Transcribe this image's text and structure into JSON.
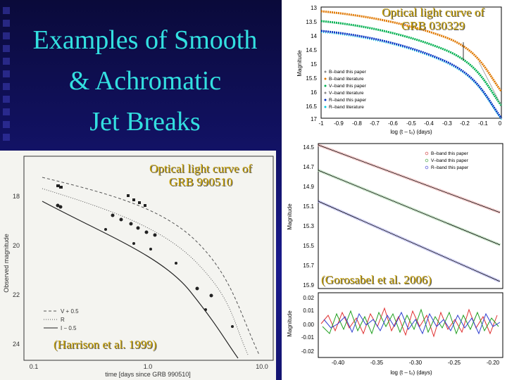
{
  "slide": {
    "title_lines": [
      "Examples of Smooth",
      "& Achromatic",
      "Jet Breaks"
    ],
    "accent_color": "#33e0e0",
    "caption_color": "#c8a000"
  },
  "panels": {
    "grb030329": {
      "caption_line1": "Optical light curve of",
      "caption_line2": "GRB 030329",
      "ylabel": "Magnitude",
      "xlabel": "log (t – t₀) (days)",
      "y_ticks": [
        "13",
        "13.5",
        "14",
        "14.5",
        "15",
        "15.5",
        "16",
        "16.5",
        "17"
      ],
      "x_ticks": [
        "-1",
        "-0.9",
        "-0.8",
        "-0.7",
        "-0.6",
        "-0.5",
        "-0.4",
        "-0.3",
        "-0.2",
        "-0.1",
        "0"
      ],
      "legend": [
        "B–band this paper",
        "B–band literature",
        "V–band this paper",
        "V–band literature",
        "R–band this paper",
        "R–band literature"
      ]
    },
    "grb990510": {
      "caption_line1": "Optical light curve of",
      "caption_line2": "GRB 990510",
      "ylabel": "Observed magnitude",
      "xlabel": "time [days since GRB 990510]",
      "y_ticks": [
        "18",
        "20",
        "22",
        "24"
      ],
      "x_ticks": [
        "0.1",
        "1.0",
        "10.0"
      ],
      "legend": [
        "V + 0.5",
        "R",
        "I − 0.5"
      ],
      "citation": "(Harrison et al. 1999)"
    },
    "right_lower": {
      "ylabel": "Magnitude",
      "xlabel": "log (t – t₀) (days)",
      "y_ticks": [
        "14.5",
        "14.7",
        "14.9",
        "15.1",
        "15.3",
        "15.5",
        "15.7",
        "15.9"
      ],
      "legend": [
        "B–band this paper",
        "V–band this paper",
        "R–band this paper"
      ],
      "resid_ylabel": "Magnitude",
      "resid_y_ticks": [
        "0.02",
        "0.01",
        "0.00",
        "-0.01",
        "-0.02"
      ],
      "resid_x_ticks": [
        "-0.40",
        "-0.35",
        "-0.30",
        "-0.25",
        "-0.20"
      ],
      "citation": "(Gorosabel et al. 2006)"
    }
  }
}
